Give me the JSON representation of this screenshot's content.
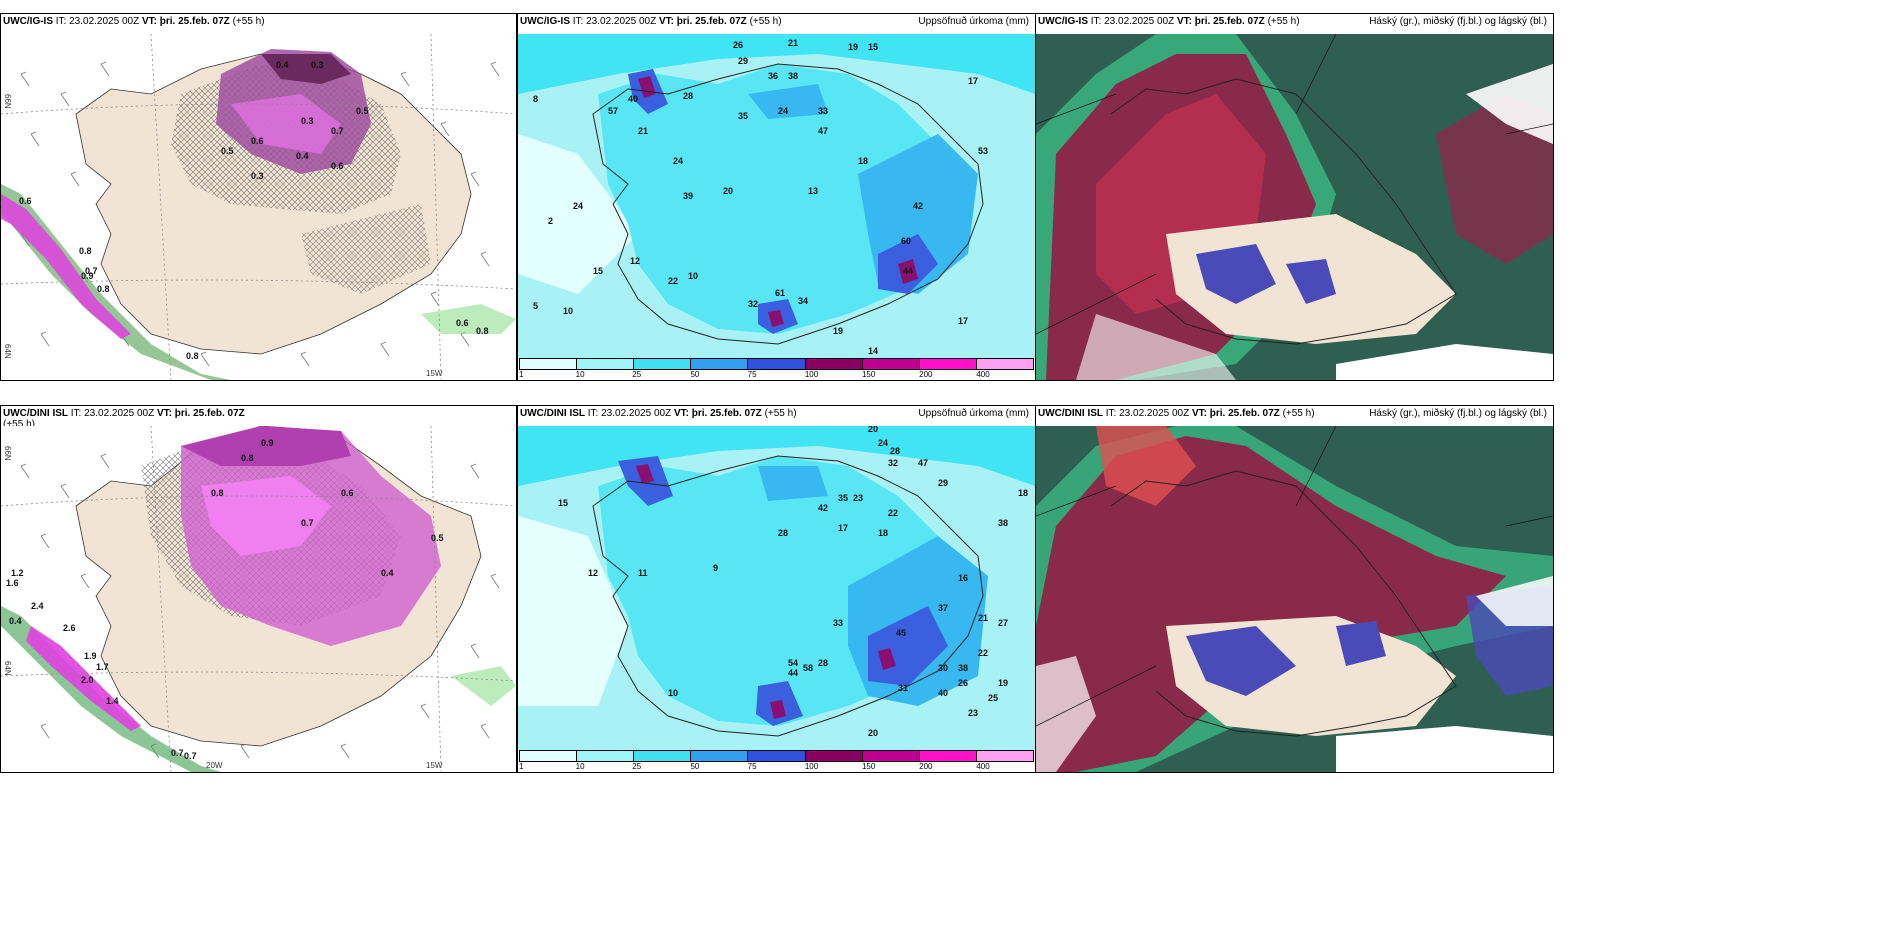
{
  "panels": [
    {
      "id": "p1",
      "model": "UWC/IG-IS",
      "it": "IT: 23.02.2025 00Z",
      "vt_label": "VT:",
      "vt": "þri. 25.feb. 07Z",
      "lead": "(+55 h)",
      "right": ""
    },
    {
      "id": "p2",
      "model": "UWC/IG-IS",
      "it": "IT: 23.02.2025 00Z",
      "vt_label": "VT:",
      "vt": "þri. 25.feb. 07Z",
      "lead": "(+55 h)",
      "right": "Uppsöfnuð úrkoma (mm)"
    },
    {
      "id": "p3",
      "model": "UWC/IG-IS",
      "it": "IT: 23.02.2025 00Z",
      "vt_label": "VT:",
      "vt": "þri. 25.feb. 07Z",
      "lead": "(+55 h)",
      "right": "Háský (gr.), miðský (fj.bl.) og lágský (bl.)"
    },
    {
      "id": "p4",
      "model": "UWC/DINI ISL",
      "it": "IT: 23.02.2025 00Z",
      "vt_label": "VT:",
      "vt": "þri. 25.feb. 07Z",
      "lead": "(+55 h)",
      "right": ""
    },
    {
      "id": "p5",
      "model": "UWC/DINI ISL",
      "it": "IT: 23.02.2025 00Z",
      "vt_label": "VT:",
      "vt": "þri. 25.feb. 07Z",
      "lead": "(+55 h)",
      "right": "Uppsöfnuð úrkoma (mm)"
    },
    {
      "id": "p6",
      "model": "UWC/DINI ISL",
      "it": "IT: 23.02.2025 00Z",
      "vt_label": "VT:",
      "vt": "þri. 25.feb. 07Z",
      "lead": "(+55 h)",
      "right": "Háský (gr.), miðský (fj.bl.) og lágský (bl.)"
    }
  ],
  "colorbar": {
    "ticks": [
      "1",
      "10",
      "25",
      "50",
      "75",
      "100",
      "150",
      "200",
      "400"
    ],
    "colors": [
      "#e0ffff",
      "#a0f4f8",
      "#40e0f0",
      "#30a0f0",
      "#3050e0",
      "#8a0060",
      "#c00090",
      "#ff10c8",
      "#ffa0f0"
    ]
  },
  "axis_labels": {
    "lat_top": "66N",
    "lat_mid": "64N",
    "lon_a": "20W",
    "lon_b": "15W"
  },
  "p1_values": [
    "0.4",
    "0.3",
    "0.5",
    "0.6",
    "0.3",
    "0.7",
    "0.5",
    "0.4",
    "0.6",
    "0.8",
    "0.7",
    "0.8",
    "0.3",
    "0.9",
    "0.6",
    "0.8",
    "0.6",
    "0.8"
  ],
  "p4_values": [
    "0.9",
    "0.8",
    "1.2",
    "1.6",
    "2.4",
    "0.4",
    "2.6",
    "1.9",
    "1.7",
    "2.0",
    "1.4",
    "0.7",
    "0.7",
    "0.6",
    "0.4",
    "0.5",
    "0.7",
    "0.8"
  ],
  "p2_values": [
    "26",
    "21",
    "19",
    "15",
    "29",
    "36",
    "38",
    "28",
    "57",
    "40",
    "24",
    "21",
    "53",
    "35",
    "24",
    "33",
    "47",
    "18",
    "17",
    "13",
    "8",
    "2",
    "24",
    "39",
    "20",
    "42",
    "10",
    "12",
    "32",
    "34",
    "19",
    "17",
    "14",
    "5",
    "15",
    "61",
    "10",
    "60",
    "44",
    "22"
  ],
  "p5_values": [
    "20",
    "24",
    "28",
    "18",
    "47",
    "35",
    "23",
    "32",
    "38",
    "29",
    "42",
    "17",
    "16",
    "22",
    "18",
    "9",
    "11",
    "28",
    "33",
    "45",
    "21",
    "15",
    "12",
    "30",
    "26",
    "22",
    "25",
    "27",
    "19",
    "10",
    "31",
    "44",
    "58",
    "54",
    "40",
    "37",
    "28",
    "38",
    "23",
    "20"
  ]
}
